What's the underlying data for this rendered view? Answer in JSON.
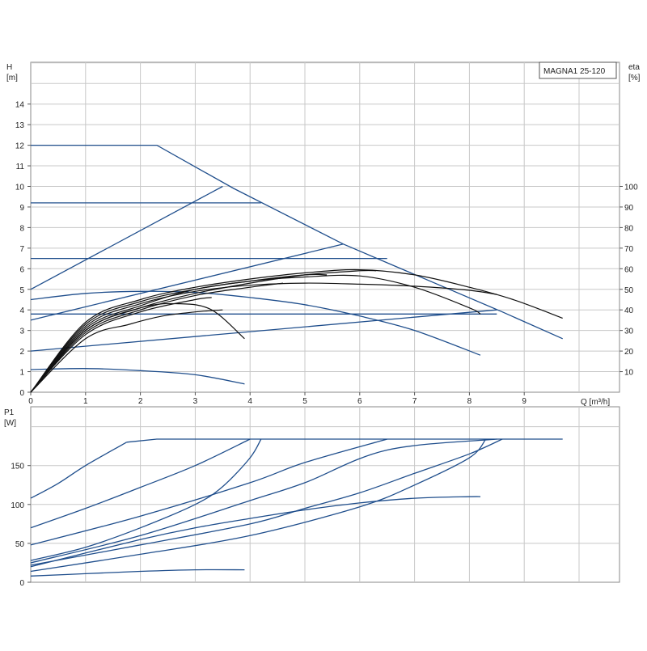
{
  "chart_data": [
    {
      "type": "line",
      "title": "MAGNA1 25-120",
      "ylabel": "H",
      "ylabel_unit": "[m]",
      "y2label": "eta",
      "y2label_unit": "[%]",
      "xlabel": "Q [m³/h]",
      "xlim": [
        0,
        10
      ],
      "ylim": [
        0,
        15
      ],
      "y2lim": [
        0,
        150
      ],
      "x_ticks": [
        "0",
        "1",
        "2",
        "3",
        "4",
        "5",
        "6",
        "7",
        "8",
        "9"
      ],
      "y_ticks": [
        "0",
        "1",
        "2",
        "3",
        "4",
        "5",
        "6",
        "7",
        "8",
        "9",
        "10",
        "11",
        "12",
        "13",
        "14"
      ],
      "y2_ticks": [
        "10",
        "20",
        "30",
        "40",
        "50",
        "60",
        "70",
        "80",
        "90",
        "100"
      ],
      "grid": true,
      "legend": "none",
      "colors": {
        "pump_curve": "#1f4e8c",
        "efficiency": "#111111",
        "grid": "#c8c8c8"
      },
      "series": [
        {
          "group": "head_max",
          "points": [
            [
              0,
              12
            ],
            [
              2.3,
              12
            ],
            [
              3.7,
              9.9
            ],
            [
              5.7,
              7.2
            ],
            [
              8.6,
              3.9
            ],
            [
              9.7,
              2.6
            ]
          ]
        },
        {
          "group": "head_constant",
          "points": [
            [
              0,
              9.2
            ],
            [
              4.2,
              9.2
            ]
          ]
        },
        {
          "group": "head_constant",
          "points": [
            [
              0,
              6.5
            ],
            [
              6.5,
              6.5
            ]
          ]
        },
        {
          "group": "head_constant",
          "points": [
            [
              0,
              3.8
            ],
            [
              8.5,
              3.8
            ]
          ]
        },
        {
          "group": "head_proportional",
          "points": [
            [
              0,
              5.0
            ],
            [
              3.5,
              10.0
            ]
          ]
        },
        {
          "group": "head_proportional",
          "points": [
            [
              0,
              3.5
            ],
            [
              5.7,
              7.2
            ]
          ]
        },
        {
          "group": "head_proportional",
          "points": [
            [
              0,
              2.0
            ],
            [
              8.5,
              4.0
            ]
          ]
        },
        {
          "group": "head_fixed_speed",
          "points": [
            [
              0,
              4.5
            ],
            [
              1.0,
              4.8
            ],
            [
              2.0,
              4.9
            ],
            [
              3.0,
              4.85
            ],
            [
              4.0,
              4.6
            ],
            [
              5.0,
              4.25
            ],
            [
              6.0,
              3.7
            ],
            [
              7.0,
              3.0
            ],
            [
              8.2,
              1.8
            ]
          ]
        },
        {
          "group": "head_fixed_speed",
          "points": [
            [
              0,
              1.1
            ],
            [
              1.0,
              1.15
            ],
            [
              2.0,
              1.05
            ],
            [
              3.0,
              0.85
            ],
            [
              3.9,
              0.4
            ]
          ]
        },
        {
          "group": "eta",
          "points": [
            [
              0,
              0
            ],
            [
              1.0,
              34
            ],
            [
              2.0,
              45
            ],
            [
              3.0,
              51
            ],
            [
              4.0,
              55
            ],
            [
              5.0,
              58
            ],
            [
              6.0,
              59.5
            ],
            [
              7.0,
              57
            ],
            [
              8.0,
              51
            ],
            [
              8.8,
              45
            ],
            [
              9.7,
              36
            ]
          ]
        },
        {
          "group": "eta",
          "points": [
            [
              0,
              0
            ],
            [
              1.0,
              32
            ],
            [
              2.0,
              43
            ],
            [
              3.0,
              49
            ],
            [
              4.0,
              52
            ],
            [
              5.0,
              53
            ],
            [
              6.0,
              52.5
            ],
            [
              7.0,
              51.5
            ],
            [
              8.0,
              49.5
            ],
            [
              8.5,
              47.5
            ]
          ]
        },
        {
          "group": "eta",
          "points": [
            [
              0,
              0
            ],
            [
              1.0,
              33
            ],
            [
              2.0,
              44
            ],
            [
              3.0,
              50
            ],
            [
              4.0,
              54
            ],
            [
              5.0,
              56
            ],
            [
              6.0,
              56.5
            ],
            [
              7.0,
              51
            ],
            [
              8.0,
              41
            ],
            [
              8.2,
              38
            ]
          ]
        },
        {
          "group": "eta",
          "points": [
            [
              0,
              0
            ],
            [
              1.0,
              30
            ],
            [
              2.0,
              41
            ],
            [
              3.0,
              48
            ],
            [
              4.0,
              53
            ],
            [
              5.0,
              57
            ],
            [
              6.0,
              59
            ],
            [
              6.3,
              59
            ]
          ]
        },
        {
          "group": "eta",
          "points": [
            [
              0,
              0
            ],
            [
              1.0,
              31
            ],
            [
              2.0,
              42
            ],
            [
              3.0,
              50
            ],
            [
              4.0,
              54
            ],
            [
              5.0,
              57
            ],
            [
              5.4,
              57
            ]
          ]
        },
        {
          "group": "eta",
          "points": [
            [
              0,
              0
            ],
            [
              1.0,
              28
            ],
            [
              2.0,
              39
            ],
            [
              3.0,
              45
            ],
            [
              3.3,
              46
            ]
          ]
        },
        {
          "group": "eta",
          "points": [
            [
              0,
              0
            ],
            [
              1.0,
              30
            ],
            [
              2.0,
              41
            ],
            [
              2.7,
              43
            ],
            [
              3.3,
              40
            ],
            [
              3.9,
              26
            ]
          ]
        },
        {
          "group": "eta",
          "points": [
            [
              0,
              0
            ],
            [
              1.0,
              26
            ],
            [
              1.8,
              33
            ],
            [
              2.4,
              37
            ],
            [
              3.0,
              39
            ],
            [
              3.5,
              40
            ]
          ]
        },
        {
          "group": "eta",
          "points": [
            [
              0,
              0
            ],
            [
              1.0,
              29
            ],
            [
              2.0,
              40
            ],
            [
              3.0,
              47
            ],
            [
              4.0,
              51
            ],
            [
              4.6,
              53
            ]
          ]
        }
      ]
    },
    {
      "type": "line",
      "title": "",
      "ylabel": "P1",
      "ylabel_unit": "[W]",
      "xlim": [
        0,
        10
      ],
      "ylim": [
        0,
        200
      ],
      "y_ticks": [
        "0",
        "50",
        "100",
        "150"
      ],
      "grid": true,
      "legend": "none",
      "colors": {
        "power_curve": "#1f4e8c",
        "grid": "#c8c8c8"
      },
      "series": [
        {
          "group": "power_max",
          "points": [
            [
              1.75,
              180
            ],
            [
              2.3,
              184
            ],
            [
              3.5,
              184
            ],
            [
              9.7,
              184
            ]
          ]
        },
        {
          "group": "power",
          "points": [
            [
              0,
              108
            ],
            [
              0.5,
              127
            ],
            [
              1.0,
              150
            ],
            [
              1.75,
              180
            ]
          ]
        },
        {
          "group": "power",
          "points": [
            [
              0,
              70
            ],
            [
              1.0,
              95
            ],
            [
              2.0,
              122
            ],
            [
              3.0,
              150
            ],
            [
              4.0,
              184
            ]
          ]
        },
        {
          "group": "power",
          "points": [
            [
              0,
              48
            ],
            [
              2.0,
              85
            ],
            [
              4.0,
              128
            ],
            [
              5.0,
              154
            ],
            [
              6.5,
              184
            ]
          ]
        },
        {
          "group": "power",
          "points": [
            [
              0,
              25
            ],
            [
              2.0,
              60
            ],
            [
              4.0,
              105
            ],
            [
              5.0,
              128
            ],
            [
              6.5,
              170
            ],
            [
              8.5,
              184
            ]
          ]
        },
        {
          "group": "power",
          "points": [
            [
              0,
              28
            ],
            [
              1.0,
              45
            ],
            [
              2.0,
              70
            ],
            [
              3.0,
              100
            ],
            [
              3.5,
              123
            ],
            [
              4.0,
              160
            ],
            [
              4.2,
              184
            ]
          ]
        },
        {
          "group": "power",
          "points": [
            [
              0,
              22
            ],
            [
              2.0,
              48
            ],
            [
              4.0,
              75
            ],
            [
              5.0,
              95
            ],
            [
              6.0,
              115
            ],
            [
              7.0,
              140
            ],
            [
              8.0,
              165
            ],
            [
              8.6,
              184
            ]
          ]
        },
        {
          "group": "power",
          "points": [
            [
              0,
              14
            ],
            [
              2.0,
              36
            ],
            [
              4.0,
              60
            ],
            [
              6.0,
              97
            ],
            [
              7.0,
              125
            ],
            [
              8.0,
              160
            ],
            [
              8.3,
              184
            ]
          ]
        },
        {
          "group": "power",
          "points": [
            [
              0,
              20
            ],
            [
              2.0,
              55
            ],
            [
              3.0,
              70
            ],
            [
              4.0,
              82
            ],
            [
              5.0,
              93
            ],
            [
              6.0,
              102
            ],
            [
              7.0,
              108
            ],
            [
              8.0,
              110
            ],
            [
              8.2,
              110
            ]
          ]
        },
        {
          "group": "power",
          "points": [
            [
              0,
              8
            ],
            [
              1.0,
              11
            ],
            [
              2.0,
              14
            ],
            [
              3.0,
              16
            ],
            [
              3.9,
              16
            ]
          ]
        }
      ]
    }
  ]
}
